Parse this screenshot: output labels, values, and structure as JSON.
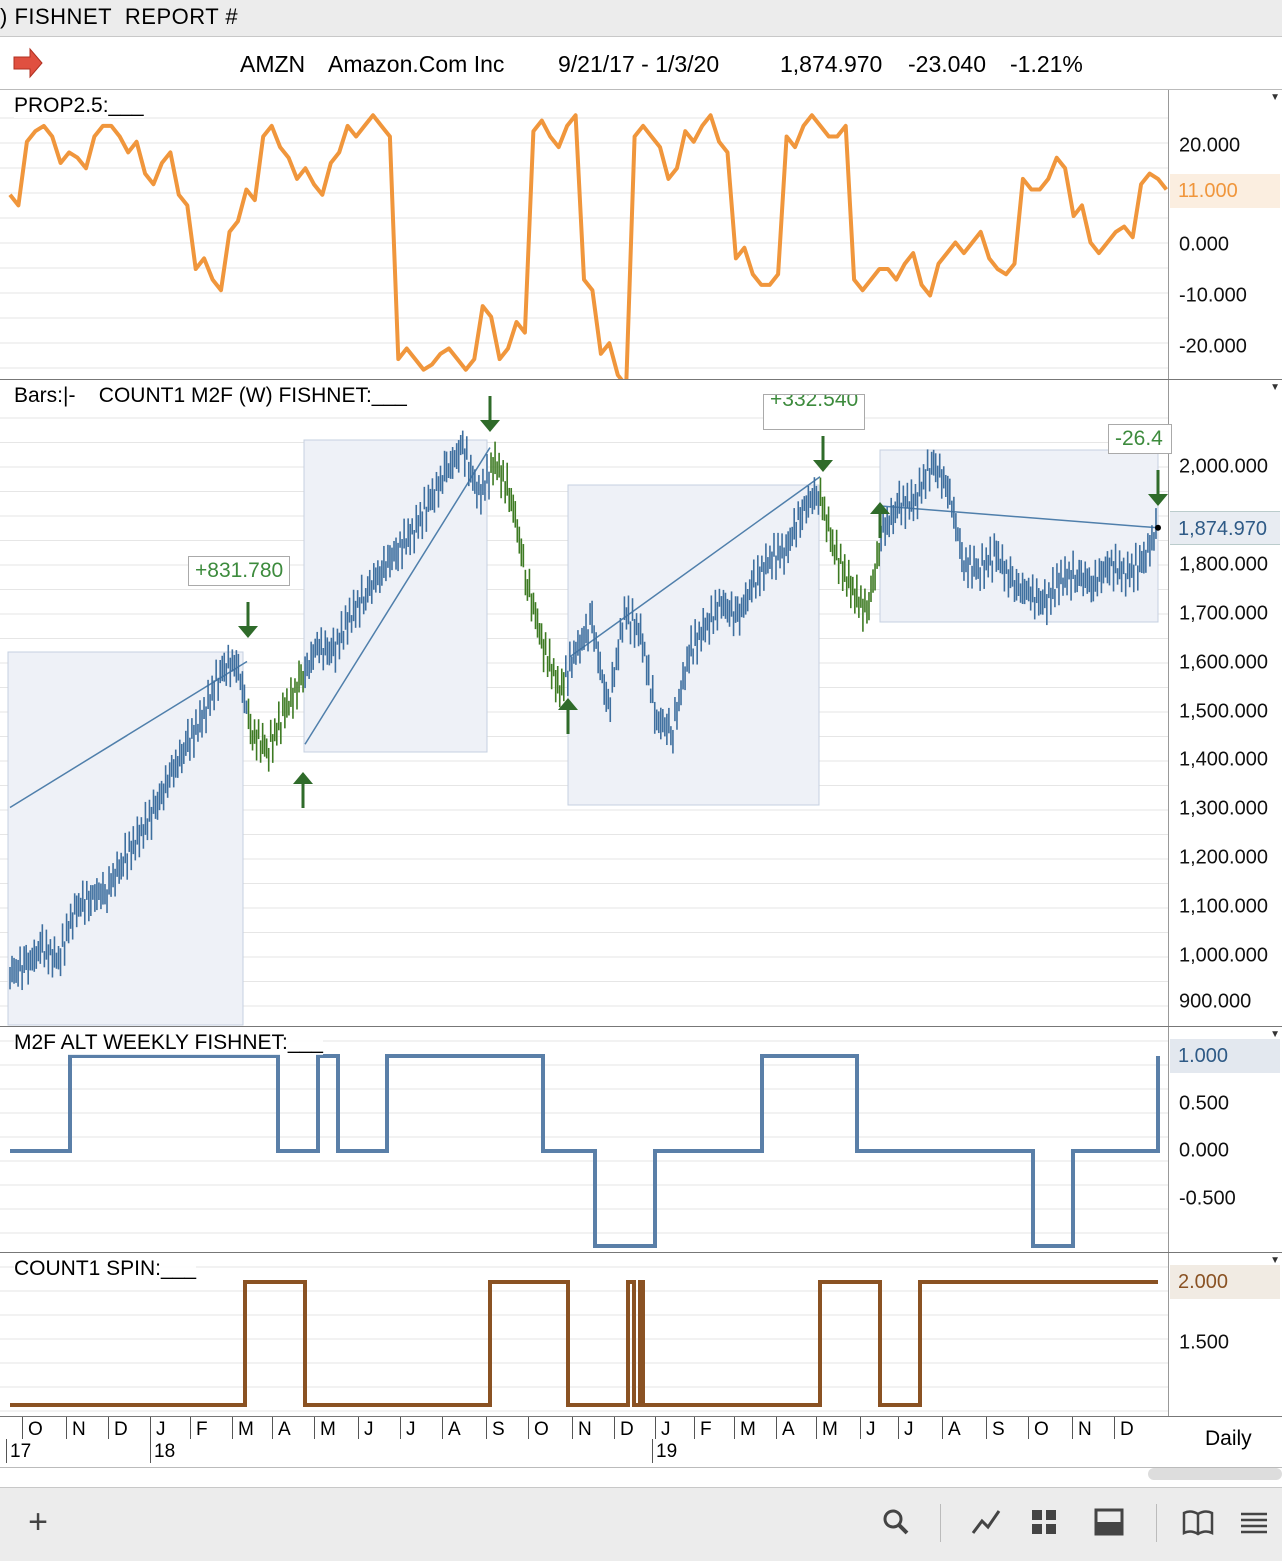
{
  "window": {
    "title": ") FISHNET  REPORT #"
  },
  "header": {
    "symbol": "AMZN",
    "company": "Amazon.Com Inc",
    "date_range": "9/21/17 - 1/3/20",
    "last_price": "1,874.970",
    "change": "-23.040",
    "change_pct": "-1.21%",
    "arrow_icon": "right-arrow-icon",
    "arrow_color": "#e05040"
  },
  "panes": {
    "prop": {
      "label": "PROP2.5:___",
      "ticks": [
        "20.000",
        "0.000",
        "-10.000",
        "-20.000"
      ],
      "current_tag": "11.000",
      "color": "#f0963c"
    },
    "bars": {
      "label": "Bars:|-    COUNT1 M2F (W) FISHNET:___",
      "ticks": [
        "2,000.000",
        "1,800.000",
        "1,700.000",
        "1,600.000",
        "1,500.000",
        "1,400.000",
        "1,300.000",
        "1,200.000",
        "1,100.000",
        "1,000.000",
        "900.000"
      ],
      "current_tag": "1,874.970",
      "annotations": [
        "+831.780",
        "+332.540",
        "-26.4"
      ],
      "up_color": "#3e6f9f",
      "down_color": "#3d7a22"
    },
    "m2f": {
      "label": "M2F ALT WEEKLY FISHNET:___",
      "ticks": [
        "0.500",
        "0.000",
        "-0.500"
      ],
      "current_tag": "1.000",
      "color": "#5a7fa8"
    },
    "count": {
      "label": "COUNT1 SPIN:___",
      "ticks": [
        "1.500"
      ],
      "current_tag": "2.000",
      "color": "#8a5223"
    }
  },
  "timeaxis": {
    "months": [
      "O",
      "N",
      "D",
      "J",
      "F",
      "M",
      "A",
      "M",
      "J",
      "J",
      "A",
      "S",
      "O",
      "N",
      "D",
      "J",
      "F",
      "M",
      "A",
      "M",
      "J",
      "J",
      "A",
      "S",
      "O",
      "N",
      "D"
    ],
    "years": [
      "17",
      "18",
      "19"
    ],
    "period": "Daily"
  },
  "chart_data": [
    {
      "type": "line",
      "title": "PROP2.5",
      "ylim": [
        -25,
        25
      ],
      "series": [
        {
          "name": "PROP2.5",
          "values": [
            9,
            19,
            22,
            15,
            16,
            20,
            22,
            17,
            13,
            15,
            9,
            -5,
            -7,
            2,
            10,
            20,
            18,
            12,
            11,
            15,
            22,
            22,
            22,
            -22,
            -22,
            -23,
            -20,
            -24,
            -12,
            -22,
            -15,
            21,
            20,
            22,
            -7,
            -21,
            -25,
            20,
            20,
            12,
            21,
            22,
            19,
            -3,
            -6,
            -8,
            20,
            22,
            22,
            20,
            -7,
            -7,
            -5,
            -4,
            -8,
            -4,
            0,
            0,
            -3,
            -6,
            12,
            10,
            16,
            5,
            0,
            0,
            3,
            11,
            12
          ]
        }
      ],
      "current": 11
    },
    {
      "type": "line",
      "title": "COUNT1 M2F (W) FISHNET",
      "ylim": [
        880,
        2130
      ],
      "series": [
        {
          "name": "AMZN",
          "values": [
            960,
            975,
            1010,
            985,
            1090,
            1115,
            1130,
            1190,
            1240,
            1300,
            1370,
            1430,
            1490,
            1580,
            1600,
            1450,
            1420,
            1500,
            1560,
            1630,
            1620,
            1690,
            1740,
            1790,
            1830,
            1870,
            1930,
            1990,
            2040,
            1940,
            2010,
            1940,
            1760,
            1630,
            1540,
            1620,
            1680,
            1500,
            1700,
            1660,
            1480,
            1460,
            1620,
            1670,
            1720,
            1690,
            1760,
            1810,
            1830,
            1910,
            1950,
            1830,
            1750,
            1700,
            1870,
            1920,
            1930,
            2010,
            1960,
            1800,
            1790,
            1820,
            1760,
            1740,
            1720,
            1770,
            1780,
            1760,
            1800,
            1780,
            1800,
            1875
          ]
        }
      ],
      "trend_segments": [
        {
          "from": 1300,
          "to": 1600
        },
        {
          "from": 1430,
          "to": 2040
        },
        {
          "from": 1610,
          "to": 1980
        },
        {
          "from": 1920,
          "to": 1875
        }
      ]
    },
    {
      "type": "line",
      "title": "M2F ALT WEEKLY FISHNET",
      "ylim": [
        -1.1,
        1.1
      ],
      "series": [
        {
          "name": "M2F",
          "values": [
            0,
            1,
            1,
            0,
            0,
            1,
            0,
            1,
            1,
            1,
            0,
            -1,
            -1,
            0,
            0,
            1,
            1,
            0,
            0,
            0,
            -1,
            0,
            0,
            1
          ]
        }
      ]
    },
    {
      "type": "line",
      "title": "COUNT1 SPIN",
      "ylim": [
        0.9,
        2.1
      ],
      "series": [
        {
          "name": "COUNT1",
          "values": [
            1,
            1,
            2,
            2,
            1,
            1,
            2,
            2,
            1,
            1,
            2,
            1,
            1,
            2,
            2,
            1,
            1,
            2,
            2,
            2
          ]
        }
      ]
    }
  ]
}
